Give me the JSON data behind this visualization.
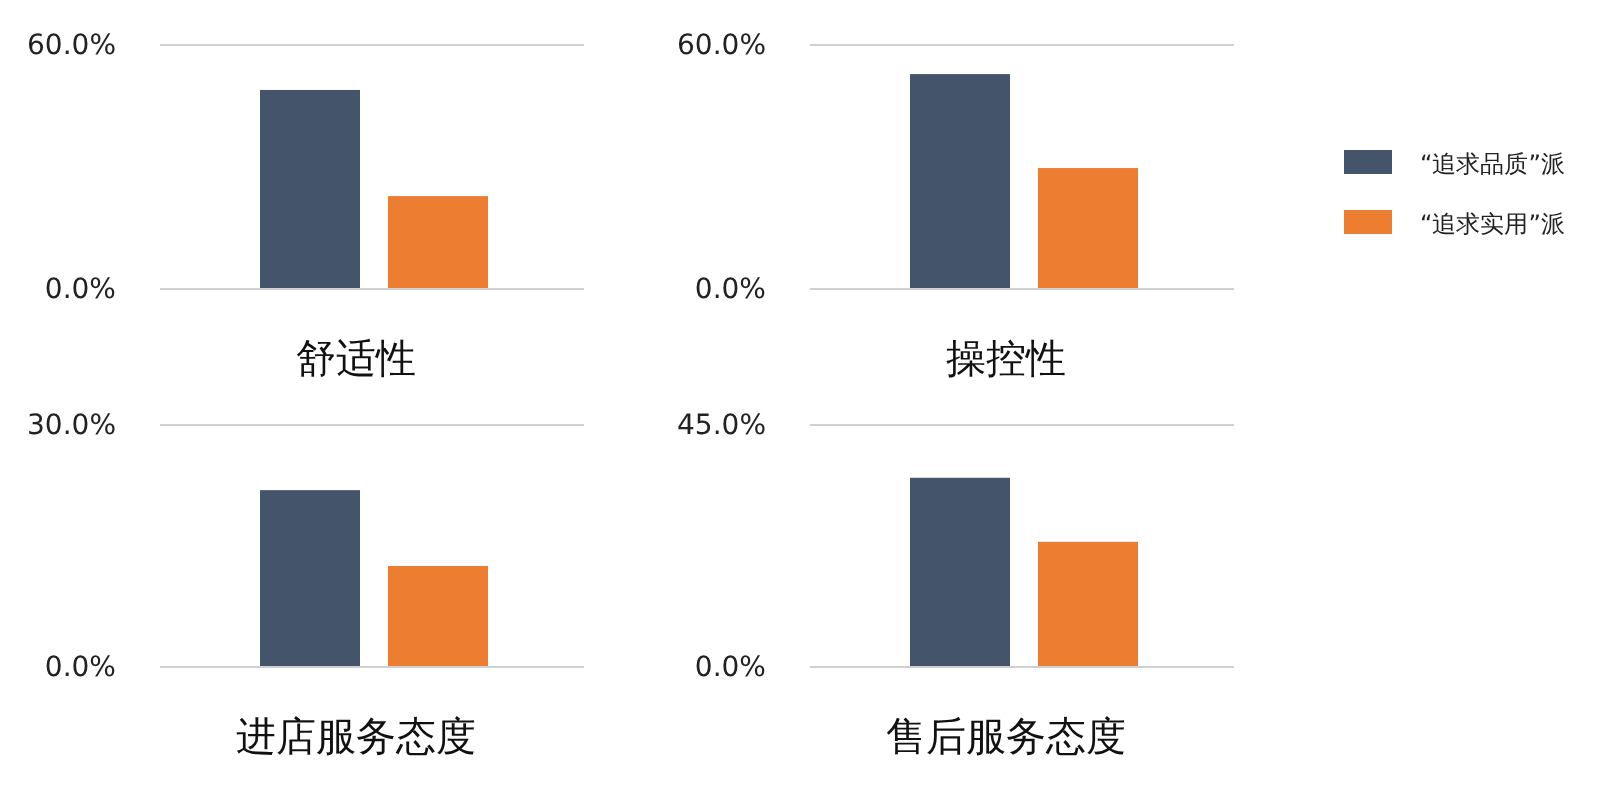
{
  "chart_data": [
    {
      "type": "bar",
      "categories": [
        "舒适性"
      ],
      "series": [
        {
          "name": "“追求品质”派",
          "color": "#44546a",
          "values": [
            48.7
          ]
        },
        {
          "name": "“追求实用”派",
          "color": "#ed7d31",
          "values": [
            22.6
          ]
        }
      ],
      "ylim": [
        0,
        60
      ],
      "yticks": [
        {
          "value": 0,
          "label": "0.0%"
        },
        {
          "value": 60,
          "label": "60.0%"
        }
      ],
      "legend": "right"
    },
    {
      "type": "bar",
      "categories": [
        "操控性"
      ],
      "series": [
        {
          "color": "#44546a",
          "values": [
            52.6
          ]
        },
        {
          "color": "#ed7d31",
          "values": [
            29.5
          ]
        }
      ],
      "ylim": [
        0,
        60
      ],
      "yticks": [
        {
          "value": 0,
          "label": "0.0%"
        },
        {
          "value": 60,
          "label": "60.0%"
        }
      ]
    },
    {
      "type": "bar",
      "categories": [
        "进店服务态度"
      ],
      "series": [
        {
          "color": "#44546a",
          "values": [
            21.8
          ]
        },
        {
          "color": "#ed7d31",
          "values": [
            12.4
          ]
        }
      ],
      "ylim": [
        0,
        30
      ],
      "yticks": [
        {
          "value": 0,
          "label": "0.0%"
        },
        {
          "value": 30,
          "label": "30.0%"
        }
      ]
    },
    {
      "type": "bar",
      "categories": [
        "售后服务态度"
      ],
      "series": [
        {
          "color": "#44546a",
          "values": [
            35.0
          ]
        },
        {
          "color": "#ed7d31",
          "values": [
            23.1
          ]
        }
      ],
      "ylim": [
        0,
        45
      ],
      "yticks": [
        {
          "value": 0,
          "label": "0.0%"
        },
        {
          "value": 45,
          "label": "45.0%"
        }
      ]
    }
  ]
}
